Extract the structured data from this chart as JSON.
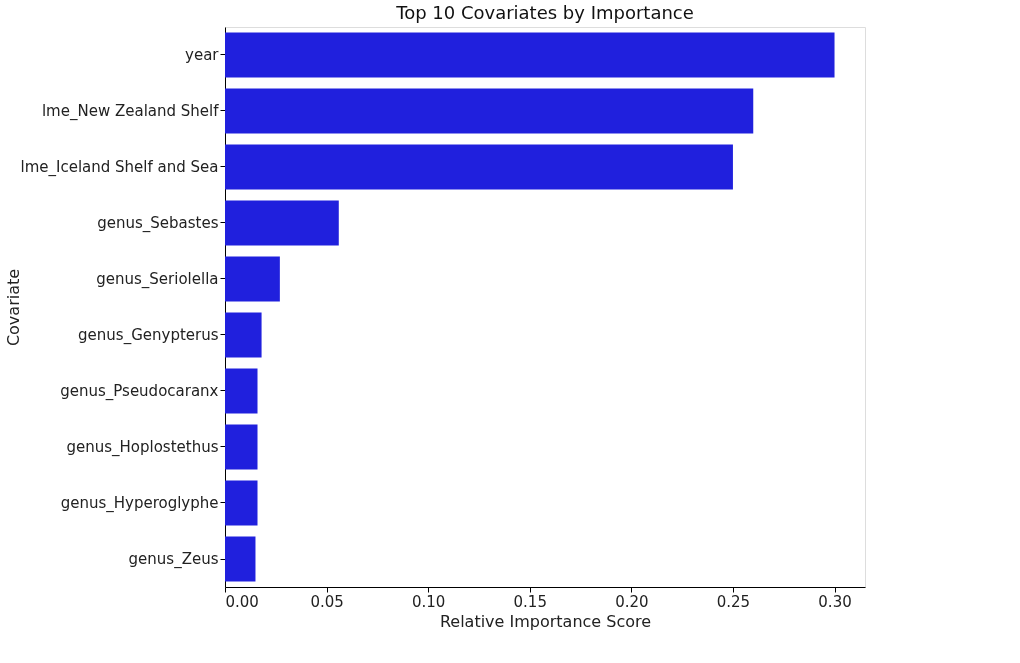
{
  "chart_data": {
    "type": "bar",
    "orientation": "horizontal",
    "title": "Top 10 Covariates by Importance",
    "xlabel": "Relative Importance Score",
    "ylabel": "Covariate",
    "categories": [
      "year",
      "lme_New Zealand Shelf",
      "lme_Iceland Shelf and Sea",
      "genus_Sebastes",
      "genus_Seriolella",
      "genus_Genypterus",
      "genus_Pseudocaranx",
      "genus_Hoplostethus",
      "genus_Hyperoglyphe",
      "genus_Zeus"
    ],
    "values": [
      0.3,
      0.26,
      0.25,
      0.056,
      0.027,
      0.018,
      0.016,
      0.016,
      0.016,
      0.015
    ],
    "color": "#2020dd",
    "xlim": [
      0,
      0.315
    ],
    "xticks": [
      {
        "value": 0,
        "label": "0.00"
      },
      {
        "value": 0.05,
        "label": "0.05"
      },
      {
        "value": 0.1,
        "label": "0.10"
      },
      {
        "value": 0.15,
        "label": "0.15"
      },
      {
        "value": 0.2,
        "label": "0.20"
      },
      {
        "value": 0.25,
        "label": "0.25"
      },
      {
        "value": 0.3,
        "label": "0.30"
      }
    ],
    "grid": false
  }
}
